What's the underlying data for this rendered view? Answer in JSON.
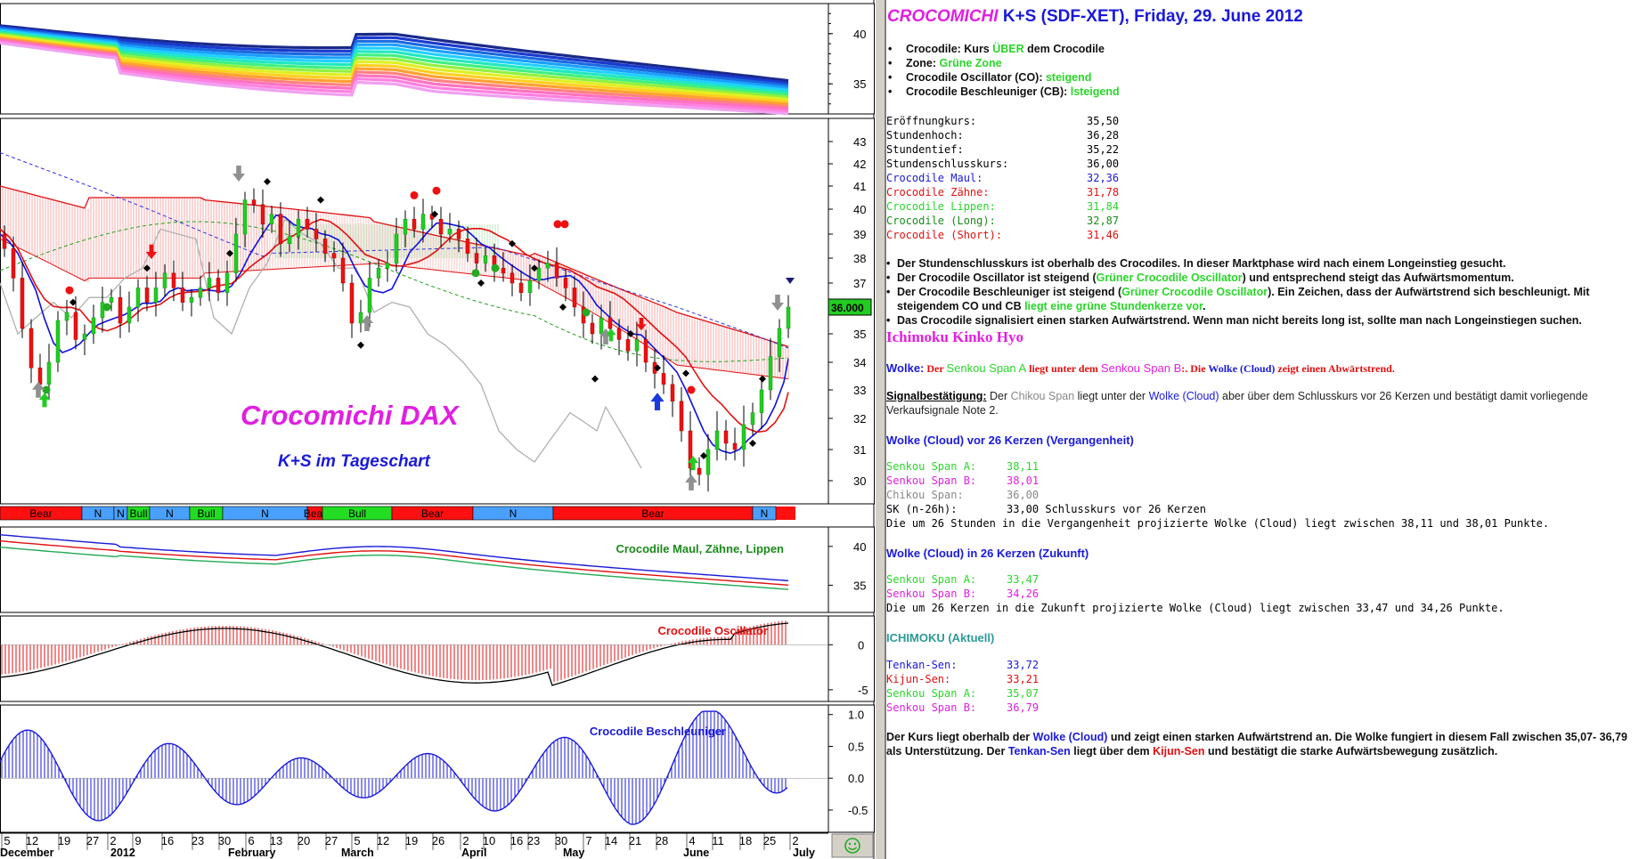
{
  "chart": {
    "wm_title": "Crocomichi DAX",
    "wm_subtitle": "K+S im Tageschart",
    "price_tag": "36.000",
    "panel_labels": {
      "maul": "Crocodile Maul, Zähne, Lippen",
      "osc": "Crocodile Oscillator",
      "besch": "Crocodile Beschleuniger"
    },
    "trend_bar": [
      {
        "label": "Bear",
        "color": "#ff1010"
      },
      {
        "label": "N",
        "color": "#4aa0ff"
      },
      {
        "label": "N",
        "color": "#4aa0ff"
      },
      {
        "label": "Bull",
        "color": "#22dd22"
      },
      {
        "label": "N",
        "color": "#4aa0ff"
      },
      {
        "label": "Bull",
        "color": "#22dd22"
      },
      {
        "label": "N",
        "color": "#4aa0ff"
      },
      {
        "label": "Bear",
        "color": "#ff1010"
      },
      {
        "label": "Bull",
        "color": "#22dd22"
      },
      {
        "label": "Bear",
        "color": "#ff1010"
      },
      {
        "label": "N",
        "color": "#4aa0ff"
      },
      {
        "label": "Bear",
        "color": "#ff1010"
      },
      {
        "label": "N",
        "color": "#4aa0ff"
      }
    ],
    "axes": {
      "top": [
        "40",
        "35"
      ],
      "main": [
        "43",
        "42",
        "41",
        "40",
        "39",
        "38",
        "37",
        "36",
        "35",
        "34",
        "33",
        "32",
        "31",
        "30"
      ],
      "maul": [
        "40",
        "35"
      ],
      "osc": [
        "0",
        "-5"
      ],
      "besch": [
        "1.0",
        "0.5",
        "0.0",
        "-0.5"
      ]
    },
    "dates": [
      "5",
      "12",
      "19",
      "27",
      "2",
      "9",
      "16",
      "23",
      "30",
      "6",
      "13",
      "20",
      "27",
      "5",
      "12",
      "19",
      "26",
      "2",
      "10",
      "16",
      "23",
      "30",
      "7",
      "14",
      "21",
      "28",
      "4",
      "11",
      "18",
      "25",
      "2"
    ],
    "months": [
      "December",
      "2012",
      "February",
      "March",
      "April",
      "May",
      "June",
      "July"
    ]
  },
  "report": {
    "title_name": "CROCOMICHI",
    "title_rest": "K+S (SDF-XET), Friday, 29. June 2012",
    "bullets": [
      {
        "label": "Crocodile:  Kurs ",
        "value": "ÜBER",
        "tail": " dem Crocodile"
      },
      {
        "label": "Zone:  ",
        "value": "Grüne Zone",
        "tail": ""
      },
      {
        "label": "Crocodile Oscillator (CO):  ",
        "value": "steigend",
        "tail": ""
      },
      {
        "label": "Crocodile Beschleuniger (CB):  ",
        "value": "lsteigend",
        "tail": ""
      }
    ],
    "stats": [
      {
        "label": "Eröffnungkurs:",
        "value": "35,50",
        "color": "#000000"
      },
      {
        "label": "Stundenhoch:",
        "value": "36,28",
        "color": "#000000"
      },
      {
        "label": "Stundentief:",
        "value": "35,22",
        "color": "#000000"
      },
      {
        "label": "Stundenschlusskurs:",
        "value": "36,00",
        "color": "#000000"
      },
      {
        "label": "Crocodile Maul:",
        "value": "32,36",
        "color": "#1a1ad9"
      },
      {
        "label": "Crocodile Zähne:",
        "value": "31,78",
        "color": "#e01010"
      },
      {
        "label": "Crocodile Lippen:",
        "value": "31,84",
        "color": "#2ad62a"
      },
      {
        "label": "Crocodile  (Long):",
        "value": "32,87",
        "color": "#1a8a1a"
      },
      {
        "label": "Crocodile  (Short):",
        "value": "31,46",
        "color": "#e01010"
      }
    ],
    "p1": "Der Stundenschlusskurs ist oberhalb des Crocodiles. In dieser Marktphase wird nach einem Longeinstieg gesucht.",
    "p2a": "Der Crocodile Oscillator ist steigend (",
    "p2b": "Grüner Crocodile Oscillator",
    "p2c": ") und entsprechend steigt das Aufwärtsmomentum.",
    "p3a": "Der Crocodile Beschleuniger ist steigend (",
    "p3b": "Grüner Crocodile Oscillator",
    "p3c": "). Ein Zeichen, dass der Aufwärtstrend sich beschleunigt. Mit steigendem CO und CB ",
    "p3d": "liegt eine grüne Stundenkerze vor",
    "p3e": ".",
    "p4": "Das Crocodile signalisiert einen starken Aufwärtstrend. Wenn man nicht bereits long ist, sollte man nach Longeinstiegen suchen.",
    "ichimoku_title": "Ichimoku Kinko Hyo",
    "wolke_lbl": "Wolke:",
    "wolke_1": " Der ",
    "wolke_sa": "Senkou Span A",
    "wolke_2": " liegt unter dem ",
    "wolke_sb": "Senkou Span B",
    "wolke_3": ":. Die ",
    "wolke_4": "Wolke (Cloud)",
    "wolke_5": " zeigt einen Abwärtstrend.",
    "sig_lbl": "Signalbestätigung:",
    "sig_1": " Der ",
    "sig_chikou": "Chikou Span",
    "sig_2": " liegt unter der ",
    "sig_wolke": "Wolke (Cloud)",
    "sig_3": " aber über dem Schlusskurs vor 26 Kerzen und bestätigt damit vorliegende Verkaufsignale Note 2.",
    "past_title": "Wolke (Cloud) vor 26 Kerzen (Vergangenheit)",
    "past": [
      {
        "label": "Senkou Span A:",
        "value": "38,11",
        "color": "#2ad62a"
      },
      {
        "label": "Senkou Span B:",
        "value": "38,01",
        "color": "#e020e0"
      },
      {
        "label": "Chikou Span:",
        "value": "36,00",
        "color": "#888888"
      },
      {
        "label": "SK (n-26h):",
        "value": "33,00 Schlusskurs vor 26 Kerzen",
        "color": "#000000"
      }
    ],
    "past_note": "Die um 26 Stunden in die Vergangenheit projizierte Wolke (Cloud) liegt zwischen 38,11 und 38,01 Punkte.",
    "future_title": "Wolke (Cloud) in 26 Kerzen (Zukunft)",
    "future": [
      {
        "label": "Senkou Span A:",
        "value": "33,47",
        "color": "#2ad62a"
      },
      {
        "label": "Senkou Span B:",
        "value": "34,26",
        "color": "#e020e0"
      }
    ],
    "future_note": "Die um 26 Kerzen in die Zukunft projizierte Wolke (Cloud) liegt zwischen 33,47 und 34,26 Punkte.",
    "current_title": "ICHIMOKU (Aktuell)",
    "current": [
      {
        "label": "Tenkan-Sen:",
        "value": "33,72",
        "color": "#1a1ad9"
      },
      {
        "label": "Kijun-Sen:",
        "value": "33,21",
        "color": "#e01010"
      },
      {
        "label": "Senkou Span A:",
        "value": "35,07",
        "color": "#2ad62a"
      },
      {
        "label": "Senkou Span B:",
        "value": "36,79",
        "color": "#e020e0"
      }
    ],
    "final_1": "Der Kurs liegt oberhalb der ",
    "final_wolke": "Wolke (Cloud)",
    "final_2": " und zeigt einen starken Aufwärtstrend an. Die Wolke fungiert in diesem Fall zwischen 35,07- 36,79 als Unterstützung. Der ",
    "final_tenkan": "Tenkan-Sen",
    "final_3": " liegt über dem ",
    "final_kijun": "Kijun-Sen",
    "final_4": " und bestätigt die starke Aufwärtsbewegung zusätzlich."
  }
}
